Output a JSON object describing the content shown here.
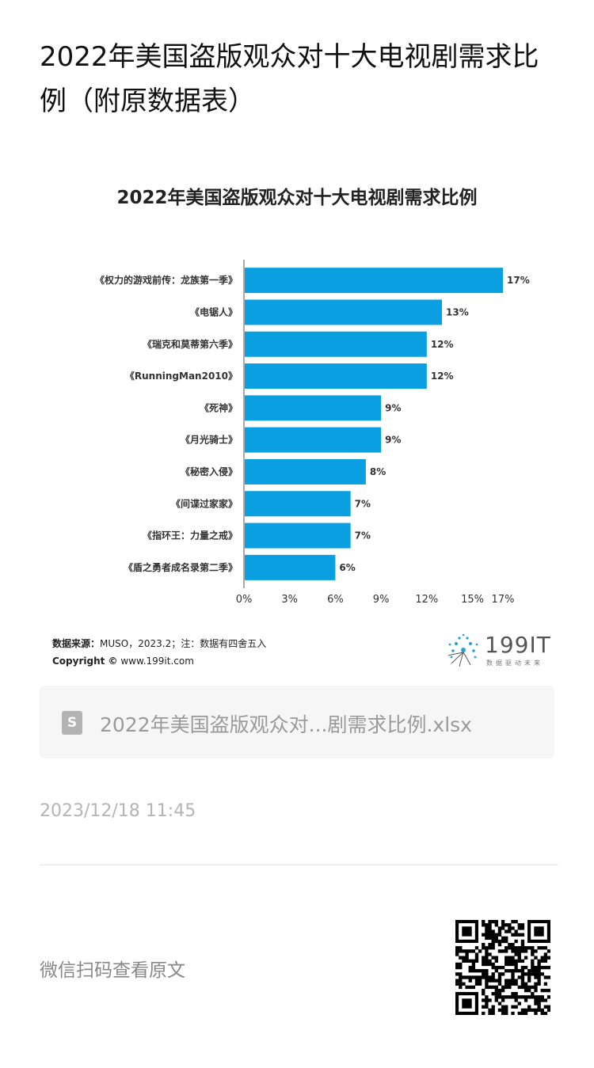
{
  "page": {
    "title": "2022年美国盗版观众对十大电视剧需求比例（附原数据表）",
    "source_label": "数据来源：",
    "source_text": "MUSO，2023.2；注：数据有四舍五入",
    "copyright_label": "Copyright ©",
    "copyright_text": " www.199it.com",
    "logo_text": "199IT",
    "logo_sub": "数据驱动未来",
    "file_icon": "S",
    "file_name": "2022年美国盗版观众对...剧需求比例.xlsx",
    "date": "2023/12/18 11:45",
    "scan_text": "微信扫码查看原文"
  },
  "colors": {
    "bar": "#0a9fe0",
    "axis": "#555555",
    "text": "#333333"
  },
  "chart_data": {
    "type": "bar",
    "orientation": "horizontal",
    "title": "2022年美国盗版观众对十大电视剧需求比例",
    "categories": [
      "《权力的游戏前传：龙族第一季》",
      "《电锯人》",
      "《瑞克和莫蒂第六季》",
      "《RunningMan2010》",
      "《死神》",
      "《月光骑士》",
      "《秘密入侵》",
      "《间谍过家家》",
      "《指环王：力量之戒》",
      "《盾之勇者成名录第二季》"
    ],
    "values": [
      17,
      13,
      12,
      12,
      9,
      9,
      8,
      7,
      7,
      6
    ],
    "value_labels": [
      "17%",
      "13%",
      "12%",
      "12%",
      "9%",
      "9%",
      "8%",
      "7%",
      "7%",
      "6%"
    ],
    "xticks": [
      0,
      3,
      6,
      9,
      12,
      15,
      17
    ],
    "xtick_labels": [
      "0%",
      "3%",
      "6%",
      "9%",
      "12%",
      "15%",
      "17%"
    ],
    "xlim": [
      0,
      17
    ],
    "grid": false,
    "legend": "none"
  }
}
